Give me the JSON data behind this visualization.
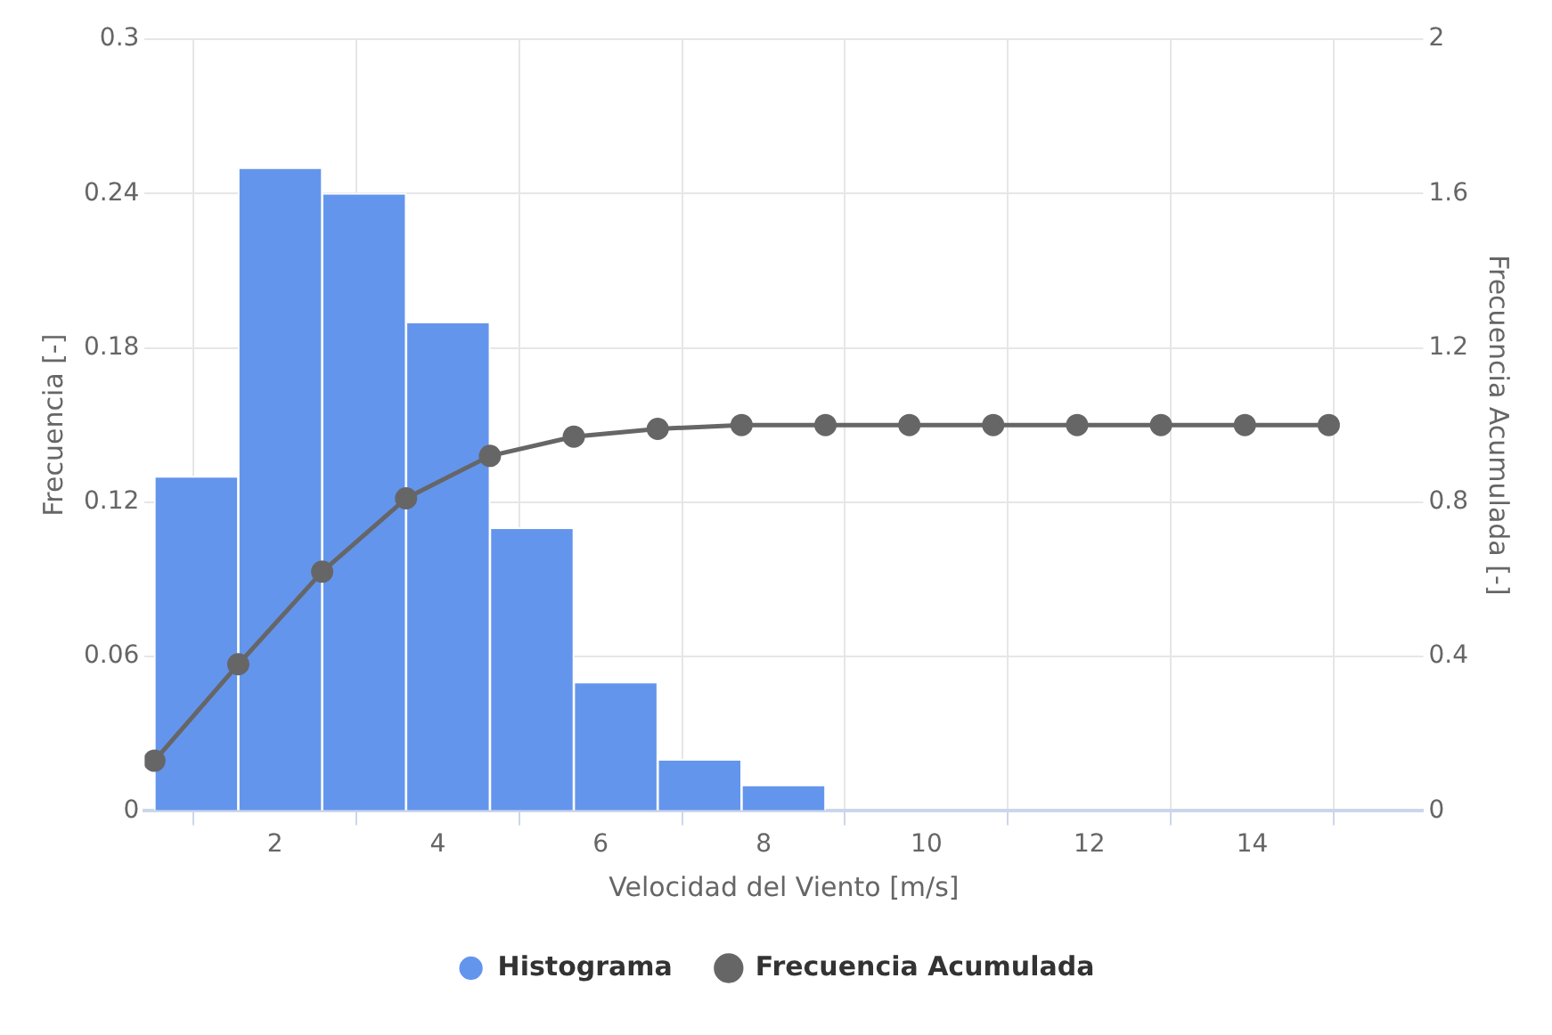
{
  "chart_data": {
    "type": "histogram",
    "xlabel": "Velocidad del Viento [m/s]",
    "ylabel": "Frecuencia [-]",
    "y2label": "Frecuencia Acumulada [-]",
    "bins": [
      0.52,
      1.55,
      2.58,
      3.61,
      4.64,
      5.67,
      6.7,
      7.73,
      8.76,
      9.79,
      10.82,
      11.85,
      12.88,
      13.91,
      14.94
    ],
    "series": [
      {
        "name": "Histograma",
        "color": "#6495ed",
        "values": [
          0.13,
          0.25,
          0.24,
          0.19,
          0.11,
          0.05,
          0.02,
          0.01,
          0,
          0,
          0,
          0,
          0,
          0
        ]
      },
      {
        "name": "Frecuencia Acumulada",
        "type": "line",
        "axis": "y2",
        "color": "#666666",
        "marker": "circle",
        "x": [
          0.52,
          1.55,
          2.58,
          3.61,
          4.64,
          5.67,
          6.7,
          7.73,
          8.76,
          9.79,
          10.82,
          11.85,
          12.88,
          13.91,
          14.94
        ],
        "values": [
          0.13,
          0.38,
          0.62,
          0.81,
          0.92,
          0.97,
          0.99,
          1,
          1,
          1,
          1,
          1,
          1,
          1,
          1
        ]
      }
    ],
    "xlim": [
      0.4,
      16.1
    ],
    "xticks": [
      2,
      4,
      6,
      8,
      10,
      12,
      14
    ],
    "ylim": [
      0,
      0.3
    ],
    "yticks": [
      0,
      0.06,
      0.12,
      0.18,
      0.24,
      0.3
    ],
    "y2lim": [
      0,
      2
    ],
    "y2ticks": [
      0,
      0.4,
      0.8,
      1.2,
      1.6,
      2
    ],
    "grid": true,
    "legend": "bottom"
  }
}
